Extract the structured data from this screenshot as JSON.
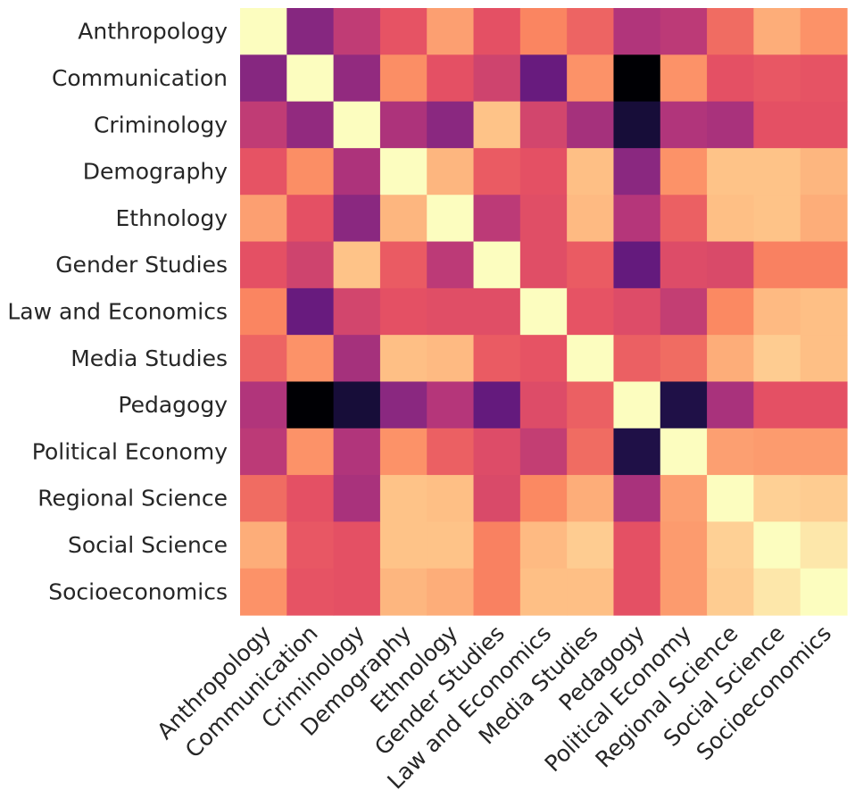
{
  "chart_data": {
    "type": "heatmap",
    "title": "",
    "xlabel": "",
    "ylabel": "",
    "labels": [
      "Anthropology",
      "Communication",
      "Criminology",
      "Demography",
      "Ethnology",
      "Gender Studies",
      "Law and Economics",
      "Media Studies",
      "Pedagogy",
      "Political Economy",
      "Regional Science",
      "Social Science",
      "Socioeconomics"
    ],
    "colormap": "magma",
    "vmin": -0.06,
    "vmax": 1.0,
    "colorbar": false,
    "matrix": [
      [
        1.0,
        0.35,
        0.5,
        0.61,
        0.79,
        0.6,
        0.73,
        0.65,
        0.46,
        0.49,
        0.67,
        0.82,
        0.76
      ],
      [
        0.35,
        1.0,
        0.38,
        0.75,
        0.6,
        0.54,
        0.27,
        0.76,
        -0.06,
        0.76,
        0.6,
        0.62,
        0.61
      ],
      [
        0.5,
        0.38,
        1.0,
        0.45,
        0.36,
        0.87,
        0.55,
        0.43,
        0.05,
        0.46,
        0.44,
        0.6,
        0.6
      ],
      [
        0.61,
        0.75,
        0.45,
        1.0,
        0.84,
        0.63,
        0.6,
        0.86,
        0.36,
        0.76,
        0.87,
        0.87,
        0.84
      ],
      [
        0.79,
        0.6,
        0.36,
        0.84,
        1.0,
        0.49,
        0.59,
        0.85,
        0.47,
        0.64,
        0.86,
        0.87,
        0.82
      ],
      [
        0.6,
        0.54,
        0.87,
        0.63,
        0.49,
        1.0,
        0.59,
        0.63,
        0.26,
        0.58,
        0.57,
        0.72,
        0.72
      ],
      [
        0.73,
        0.27,
        0.55,
        0.6,
        0.59,
        0.59,
        1.0,
        0.61,
        0.58,
        0.51,
        0.74,
        0.85,
        0.86
      ],
      [
        0.65,
        0.76,
        0.43,
        0.86,
        0.85,
        0.63,
        0.61,
        1.0,
        0.64,
        0.67,
        0.82,
        0.89,
        0.86
      ],
      [
        0.46,
        -0.06,
        0.05,
        0.36,
        0.47,
        0.26,
        0.58,
        0.64,
        1.0,
        0.08,
        0.44,
        0.6,
        0.6
      ],
      [
        0.49,
        0.76,
        0.46,
        0.76,
        0.64,
        0.58,
        0.51,
        0.67,
        0.08,
        1.0,
        0.79,
        0.78,
        0.78
      ],
      [
        0.67,
        0.6,
        0.44,
        0.87,
        0.86,
        0.57,
        0.74,
        0.82,
        0.44,
        0.79,
        1.0,
        0.9,
        0.89
      ],
      [
        0.82,
        0.62,
        0.6,
        0.87,
        0.87,
        0.72,
        0.85,
        0.89,
        0.6,
        0.78,
        0.9,
        1.0,
        0.95
      ],
      [
        0.76,
        0.61,
        0.6,
        0.84,
        0.82,
        0.72,
        0.86,
        0.86,
        0.6,
        0.78,
        0.89,
        0.95,
        1.0
      ]
    ],
    "grid": false,
    "legend": "none"
  }
}
